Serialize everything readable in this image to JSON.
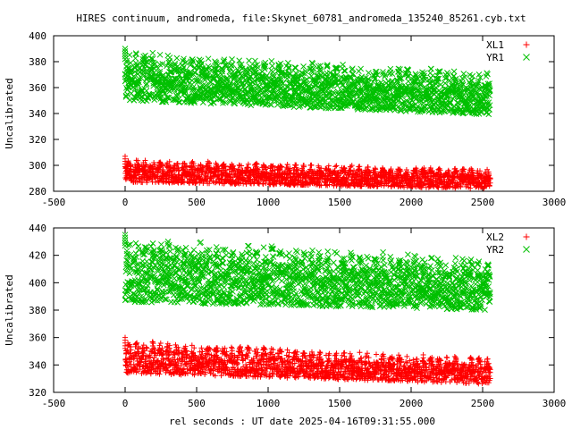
{
  "title": "HIRES continuum, andromeda, file:Skynet_60781_andromeda_135240_85261.cyb.txt",
  "xlabel": "rel seconds : UT date 2025-04-16T09:31:55.000",
  "colors": {
    "red": "#ff0000",
    "green": "#00c000",
    "frame": "#000000"
  },
  "chart_data": [
    {
      "type": "scatter",
      "ylabel": "Uncalibrated",
      "xlim": [
        -500,
        3000
      ],
      "ylim": [
        280,
        400
      ],
      "xticks": [
        -500,
        0,
        500,
        1000,
        1500,
        2000,
        2500,
        3000
      ],
      "yticks": [
        280,
        300,
        320,
        340,
        360,
        380,
        400
      ],
      "legend_position": "top-right",
      "series": [
        {
          "name": "XL1",
          "marker": "+",
          "color": "#ff0000",
          "x_range": [
            0,
            2560
          ],
          "cycles": 46,
          "trend": {
            "x": [
              0,
              2560
            ],
            "low": [
              287,
              282
            ],
            "high": [
              305,
              297
            ]
          }
        },
        {
          "name": "YR1",
          "marker": "x",
          "color": "#00c000",
          "x_range": [
            0,
            2560
          ],
          "cycles": 46,
          "trend": {
            "x": [
              0,
              2560
            ],
            "low": [
              350,
              339
            ],
            "high": [
              388,
              372
            ]
          }
        }
      ]
    },
    {
      "type": "scatter",
      "ylabel": "Uncalibrated",
      "xlim": [
        -500,
        3000
      ],
      "ylim": [
        320,
        440
      ],
      "xticks": [
        -500,
        0,
        500,
        1000,
        1500,
        2000,
        2500,
        3000
      ],
      "yticks": [
        320,
        340,
        360,
        380,
        400,
        420,
        440
      ],
      "legend_position": "top-right",
      "series": [
        {
          "name": "XL2",
          "marker": "+",
          "color": "#ff0000",
          "x_range": [
            0,
            2560
          ],
          "cycles": 46,
          "trend": {
            "x": [
              0,
              2560
            ],
            "low": [
              334,
              326
            ],
            "high": [
              358,
              345
            ]
          }
        },
        {
          "name": "YR2",
          "marker": "x",
          "color": "#00c000",
          "x_range": [
            0,
            2560
          ],
          "cycles": 46,
          "trend": {
            "x": [
              0,
              2560
            ],
            "low": [
              386,
              380
            ],
            "high": [
              433,
              418
            ]
          }
        }
      ]
    }
  ]
}
